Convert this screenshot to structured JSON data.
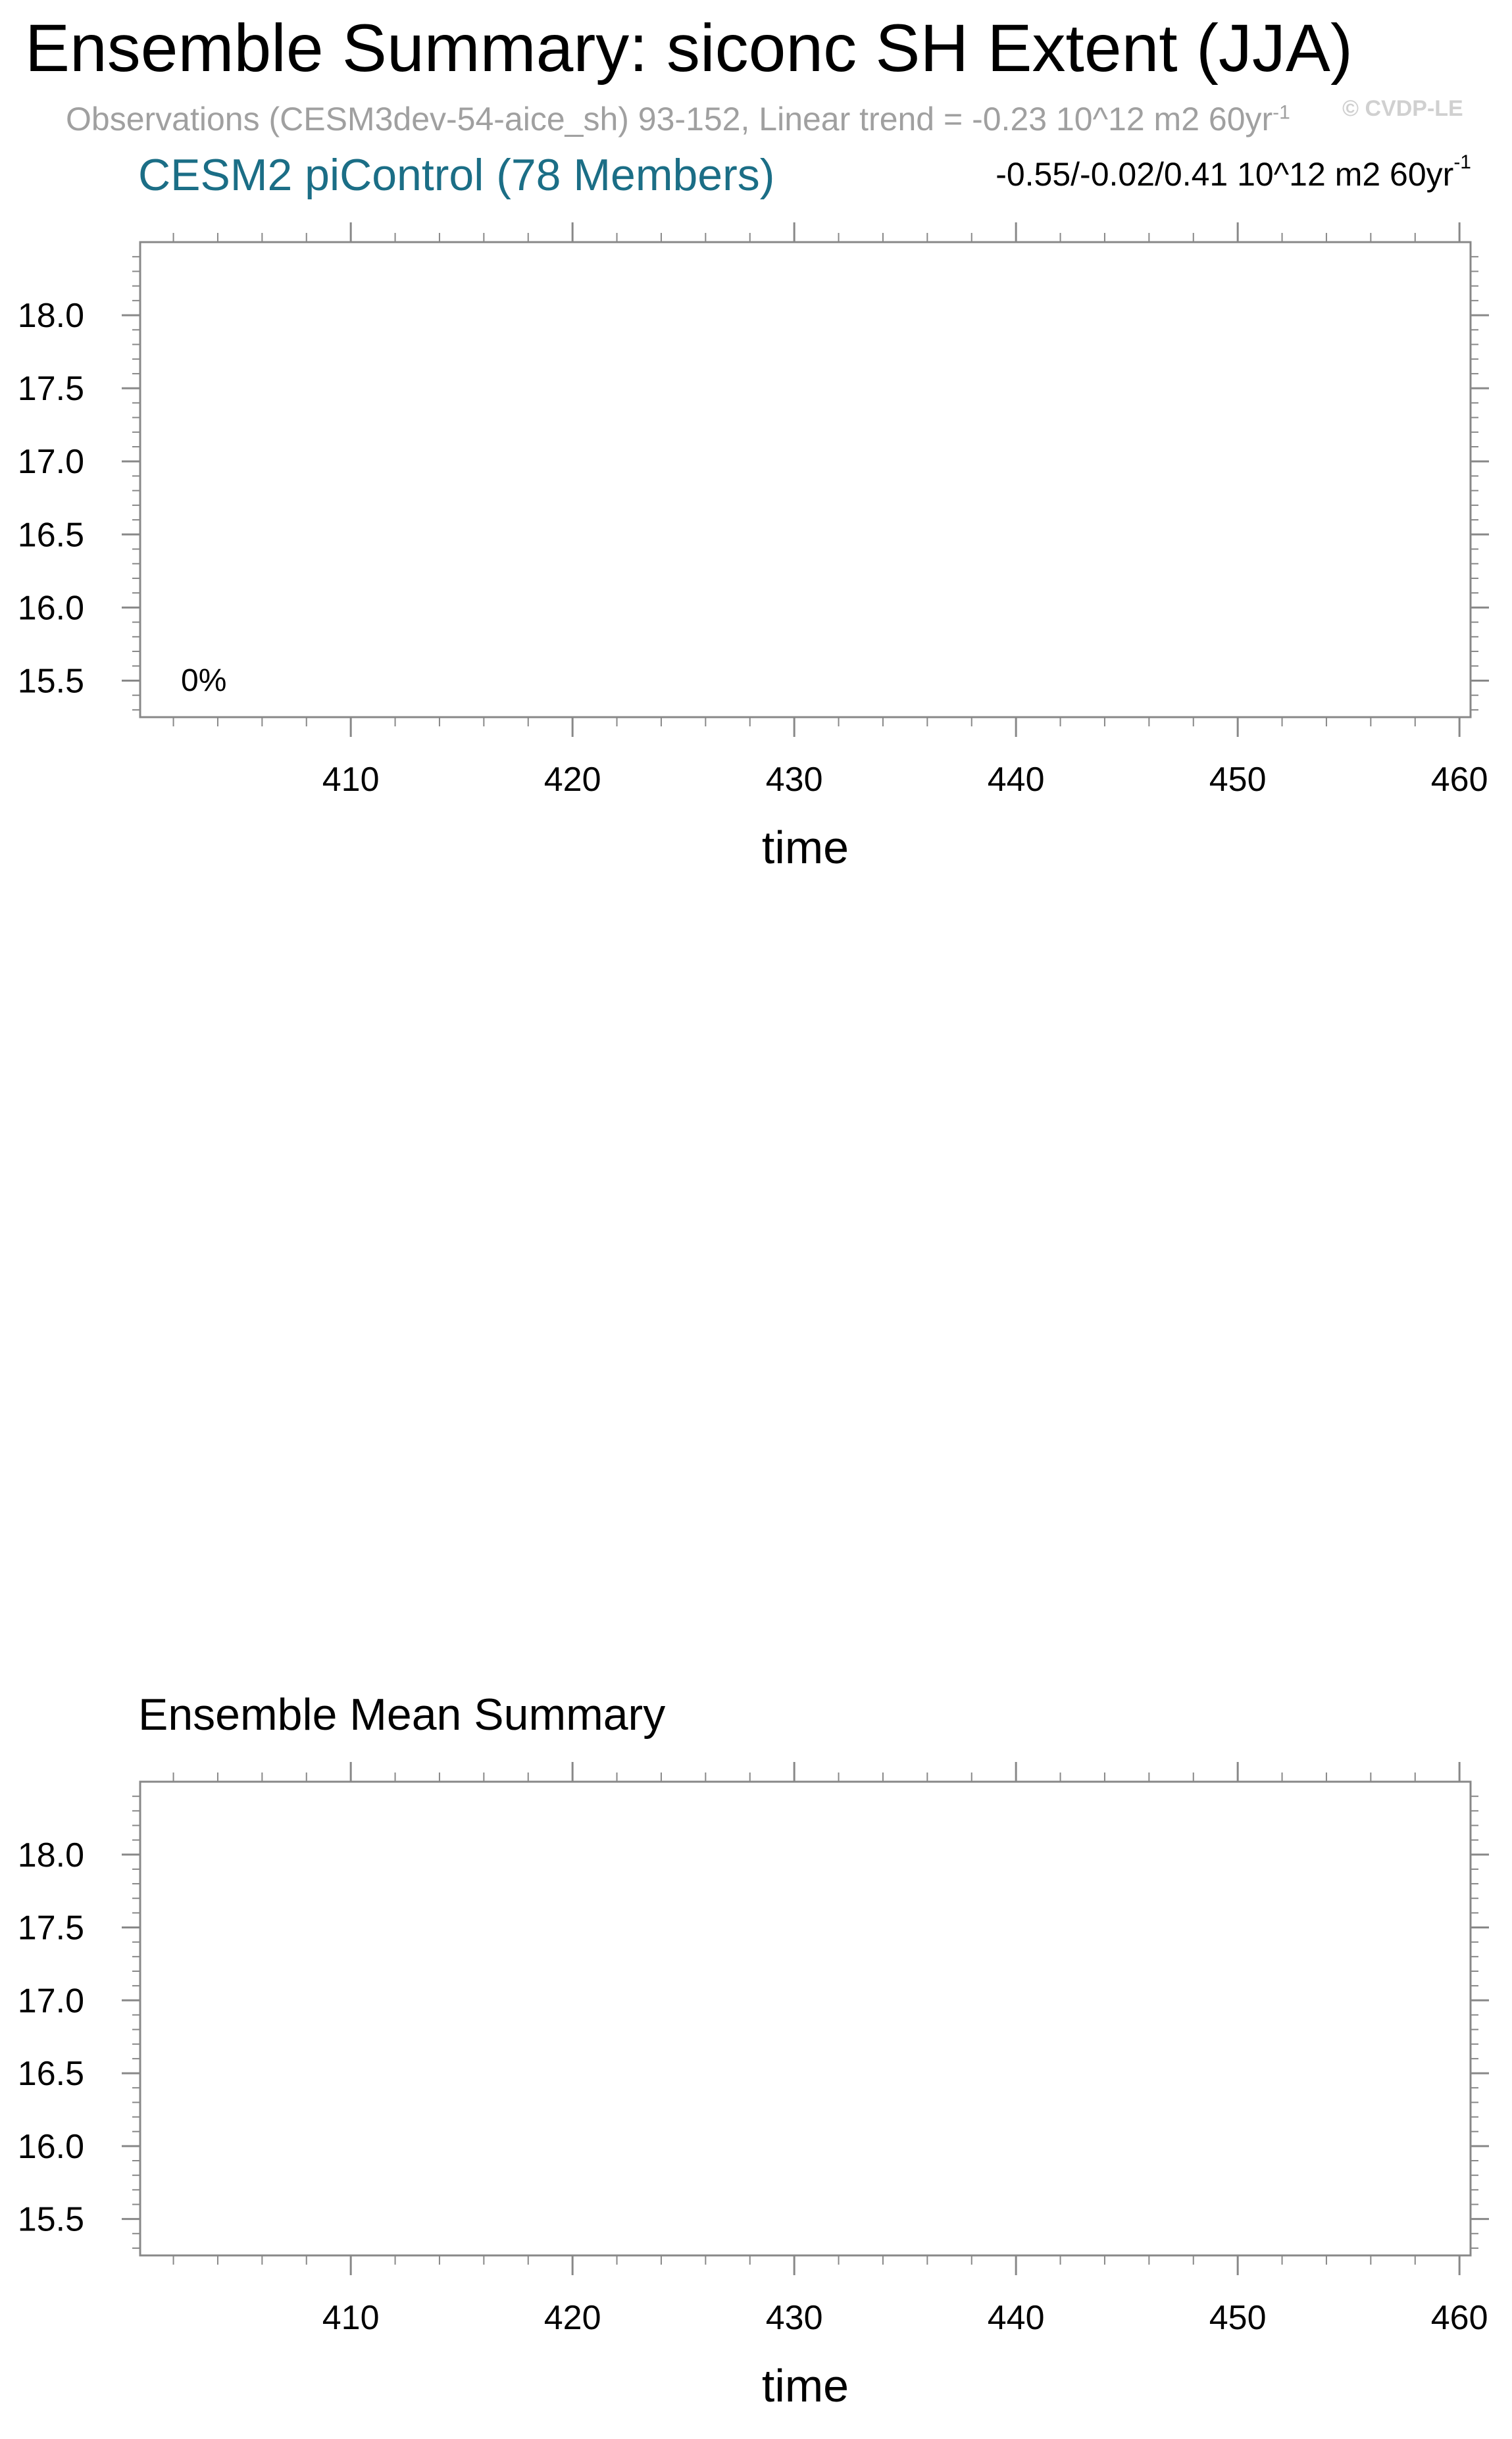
{
  "title": "Ensemble Summary: siconc SH Extent (JJA)",
  "subtitle_main": "Observations (CESM3dev-54-aice_sh) 93-152, Linear trend = -0.23 10^12 m2 60yr",
  "subtitle_exp": "-1",
  "watermark": "© CVDP-LE",
  "panel1": {
    "title": "CESM2 piControl (78 Members)",
    "stats_main": "-0.55/-0.02/0.41 10^12 m2 60yr",
    "stats_exp": "-1",
    "annotation": "0%"
  },
  "panel2": {
    "title": "Ensemble Mean Summary"
  },
  "chart_data": [
    {
      "type": "line",
      "title": "CESM2 piControl (78 Members)",
      "xlabel": "time",
      "ylabel": "",
      "xlim": [
        400.5,
        460.5
      ],
      "ylim": [
        15.25,
        18.5
      ],
      "xticks": [
        410,
        420,
        430,
        440,
        450,
        460
      ],
      "xtick_labels": [
        "410",
        "420",
        "430",
        "440",
        "450",
        "460"
      ],
      "yticks": [
        15.5,
        16.0,
        16.5,
        17.0,
        17.5,
        18.0
      ],
      "ytick_labels": [
        "15.5",
        "16.0",
        "16.5",
        "17.0",
        "17.5",
        "18.0"
      ],
      "annotations": [
        "0%"
      ],
      "series": [],
      "grid": false
    },
    {
      "type": "line",
      "title": "Ensemble Mean Summary",
      "xlabel": "time",
      "ylabel": "",
      "xlim": [
        400.5,
        460.5
      ],
      "ylim": [
        15.25,
        18.5
      ],
      "xticks": [
        410,
        420,
        430,
        440,
        450,
        460
      ],
      "xtick_labels": [
        "410",
        "420",
        "430",
        "440",
        "450",
        "460"
      ],
      "yticks": [
        15.5,
        16.0,
        16.5,
        17.0,
        17.5,
        18.0
      ],
      "ytick_labels": [
        "15.5",
        "16.0",
        "16.5",
        "17.0",
        "17.5",
        "18.0"
      ],
      "series": [],
      "grid": false
    }
  ]
}
